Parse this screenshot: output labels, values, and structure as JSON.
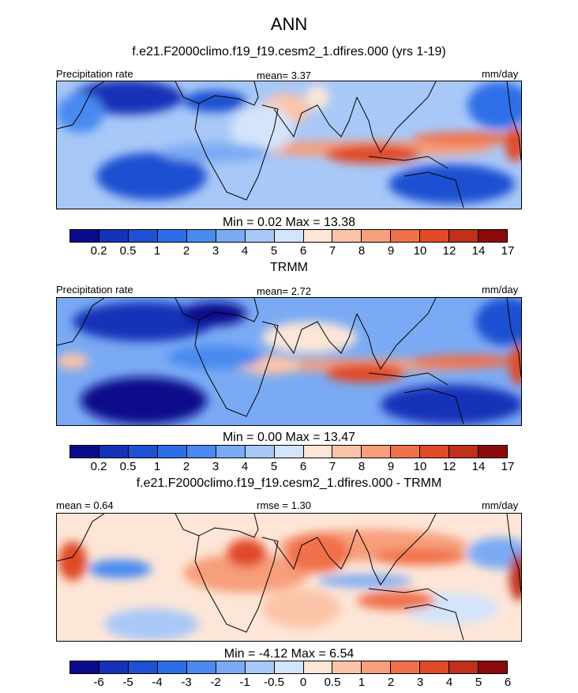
{
  "title": "ANN",
  "units_label": "mm/day",
  "panels": [
    {
      "subtitle": "f.e21.F2000climo.f19_f19.cesm2_1.dfires.000 (yrs 1-19)",
      "left_label": "Precipitation rate",
      "center_label": "mean=   3.37",
      "minmax": "Min =   0.02 Max =  13.38",
      "colorbar": "precip",
      "fields": "model"
    },
    {
      "subtitle": "TRMM",
      "left_label": "Precipitation rate",
      "center_label": "mean=   2.72",
      "minmax": "Min =   0.00 Max =  13.47",
      "colorbar": "precip",
      "fields": "obs"
    },
    {
      "subtitle": "f.e21.F2000climo.f19_f19.cesm2_1.dfires.000 - TRMM",
      "left_label": "mean =   0.64",
      "center_label": "rmse =   1.30",
      "minmax": "Min =  -4.12 Max =   6.54",
      "colorbar": "diff",
      "fields": "diff"
    }
  ],
  "colorbars": {
    "precip": {
      "levels": [
        "0.2",
        "0.5",
        "1",
        "2",
        "3",
        "4",
        "5",
        "6",
        "7",
        "8",
        "9",
        "10",
        "12",
        "14",
        "17"
      ],
      "colors": [
        "#0a0a8c",
        "#1433b8",
        "#1e50d2",
        "#2d6ee8",
        "#4a8af0",
        "#7aaaf4",
        "#a8c8f8",
        "#d4e4fb",
        "#fde6d8",
        "#fbc4a8",
        "#f79e7a",
        "#f0704a",
        "#e04a28",
        "#c0301a",
        "#8c0a0a"
      ]
    },
    "diff": {
      "levels": [
        "-6",
        "-5",
        "-4",
        "-3",
        "-2",
        "-1",
        "-0.5",
        "0",
        "0.5",
        "1",
        "2",
        "3",
        "4",
        "5",
        "6"
      ],
      "colors": [
        "#0a0a8c",
        "#1433b8",
        "#1e50d2",
        "#2d6ee8",
        "#4a8af0",
        "#7aaaf4",
        "#a8c8f8",
        "#d4e4fb",
        "#fde6d8",
        "#fbc4a8",
        "#f79e7a",
        "#f0704a",
        "#e04a28",
        "#c0301a",
        "#8c0a0a"
      ]
    }
  }
}
